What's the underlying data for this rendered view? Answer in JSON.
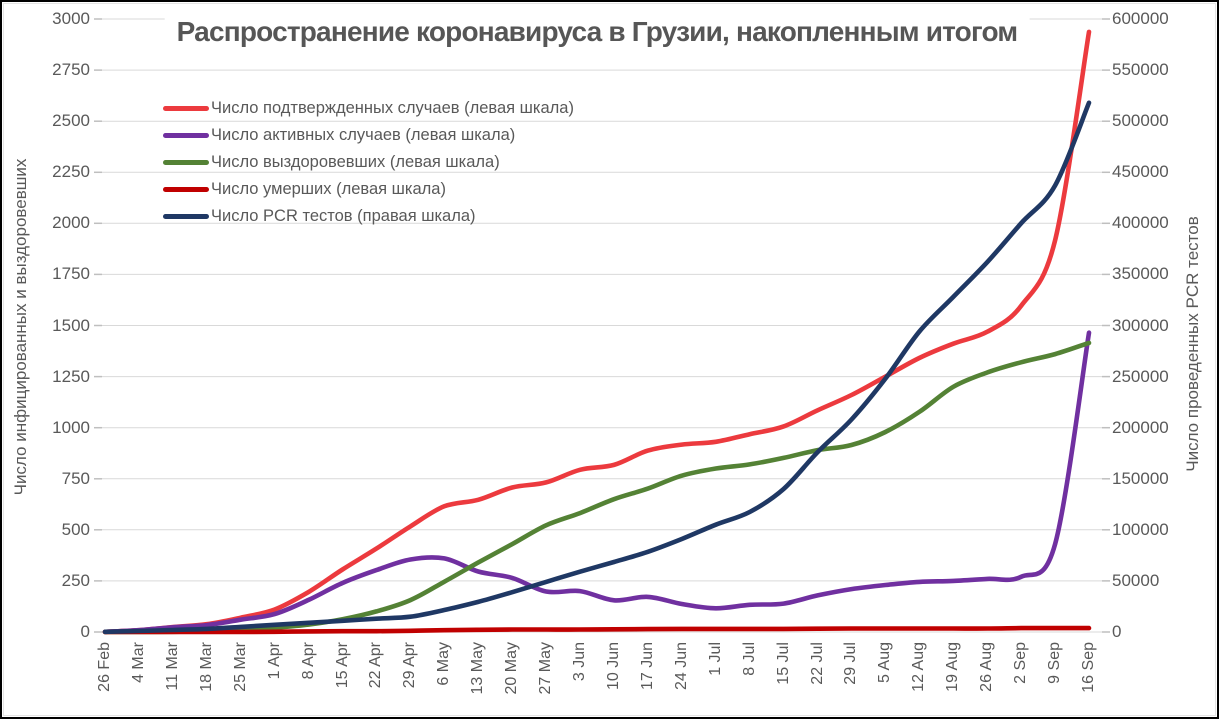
{
  "chart": {
    "background": "#ffffff",
    "gridline_color": "#d9d9d9",
    "tick_mark_color": "#bfbfbf",
    "text_color": "#595959",
    "title_color": "#565656"
  },
  "chart_data": {
    "type": "line",
    "title": "Распространение коронавируса в Грузии, накопленным итогом",
    "grid": true,
    "legend_position": "top-left",
    "categories": [
      "26 Feb",
      "4 Mar",
      "11 Mar",
      "18 Mar",
      "25 Mar",
      "1 Apr",
      "8 Apr",
      "15 Apr",
      "22 Apr",
      "29 Apr",
      "6 May",
      "13 May",
      "20 May",
      "27 May",
      "3 Jun",
      "10 Jun",
      "17 Jun",
      "24 Jun",
      "1 Jul",
      "8 Jul",
      "15 Jul",
      "22 Jul",
      "29 Jul",
      "5 Aug",
      "12 Aug",
      "19 Aug",
      "26 Aug",
      "2 Sep",
      "9 Sep",
      "16 Sep"
    ],
    "left_axis": {
      "title": "Число инфицированных и выздоровевших",
      "min": 0,
      "max": 3000,
      "step": 250,
      "ticks": [
        "0",
        "250",
        "500",
        "750",
        "1000",
        "1250",
        "1500",
        "1750",
        "2000",
        "2250",
        "2500",
        "2750",
        "3000"
      ]
    },
    "right_axis": {
      "title": "Число проведенных PCR тестов",
      "min": 0,
      "max": 600000,
      "step": 50000,
      "ticks": [
        "0",
        "50000",
        "100000",
        "150000",
        "200000",
        "250000",
        "300000",
        "350000",
        "400000",
        "450000",
        "500000",
        "550000",
        "600000"
      ]
    },
    "series": [
      {
        "id": "confirmed",
        "name": "Число подтвержденных случаев (левая шкала)",
        "axis": "left",
        "color": "#ec3a3e",
        "values": [
          1,
          9,
          24,
          38,
          70,
          110,
          196,
          306,
          408,
          517,
          615,
          647,
          707,
          732,
          794,
          818,
          888,
          917,
          931,
          968,
          1006,
          1085,
          1160,
          1250,
          1341,
          1411,
          1469,
          1596,
          1917,
          2937
        ]
      },
      {
        "id": "active",
        "name": "Число активных случаев (левая шкала)",
        "axis": "left",
        "color": "#7030a0",
        "values": [
          1,
          9,
          23,
          34,
          60,
          88,
          157,
          240,
          303,
          355,
          360,
          296,
          265,
          198,
          200,
          155,
          172,
          137,
          116,
          133,
          139,
          179,
          210,
          230,
          245,
          250,
          260,
          270,
          430,
          1465
        ]
      },
      {
        "id": "recovered",
        "name": "Число выздоровевших (левая шкала)",
        "axis": "left",
        "color": "#548235",
        "values": [
          0,
          0,
          1,
          4,
          10,
          21,
          36,
          62,
          101,
          156,
          246,
          340,
          430,
          522,
          582,
          650,
          702,
          765,
          800,
          820,
          852,
          890,
          915,
          979,
          1077,
          1200,
          1270,
          1320,
          1360,
          1415
        ]
      },
      {
        "id": "deaths",
        "name": "Число умерших (левая шкала)",
        "axis": "left",
        "color": "#c00000",
        "values": [
          0,
          0,
          0,
          0,
          0,
          1,
          3,
          4,
          4,
          6,
          9,
          11,
          12,
          12,
          12,
          13,
          14,
          15,
          15,
          15,
          15,
          16,
          17,
          17,
          17,
          17,
          17,
          19,
          19,
          19
        ]
      },
      {
        "id": "pcr-tests",
        "name": "Число PCR тестов (правая шкала)",
        "axis": "right",
        "color": "#1f3864",
        "values": [
          200,
          1000,
          2000,
          3000,
          5000,
          7000,
          9000,
          11000,
          13000,
          15000,
          21500,
          29500,
          39000,
          49000,
          59000,
          68500,
          78500,
          91000,
          105000,
          117500,
          140000,
          176000,
          208000,
          248000,
          294000,
          328000,
          362000,
          400000,
          437000,
          518000
        ]
      }
    ]
  }
}
